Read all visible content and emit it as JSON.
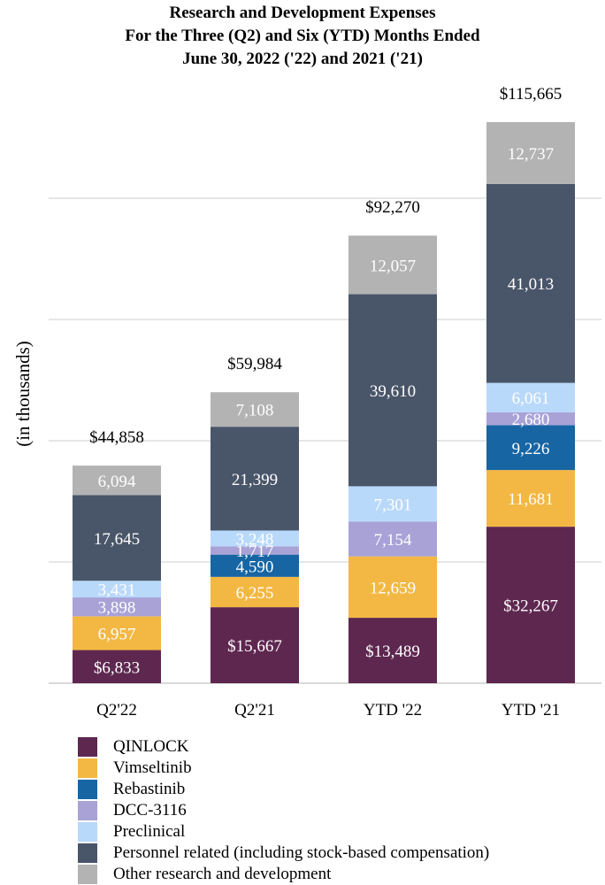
{
  "chart_data": {
    "type": "bar",
    "stacked": true,
    "title": "Research and Development Expenses",
    "subtitle_lines": [
      "For the Three (Q2) and Six (YTD) Months Ended",
      "June 30, 2022 ('22) and 2021 ('21)"
    ],
    "ylabel": "(in thousands)",
    "xlabel": "",
    "ylim": [
      0,
      115665
    ],
    "grid": true,
    "legend_position": "bottom",
    "categories": [
      "Q2'22",
      "Q2'21",
      "YTD '22",
      "YTD '21"
    ],
    "totals": [
      44858,
      59984,
      92270,
      115665
    ],
    "total_labels": [
      "$44,858",
      "$59,984",
      "$92,270",
      "$115,665"
    ],
    "series": [
      {
        "name": "QINLOCK",
        "color": "#5e2750",
        "values": [
          6833,
          15667,
          13489,
          32267
        ],
        "labels": [
          "$6,833",
          "$15,667",
          "$13,489",
          "$32,267"
        ]
      },
      {
        "name": "Vimseltinib",
        "color": "#f3b843",
        "values": [
          6957,
          6255,
          12659,
          11681
        ],
        "labels": [
          "6,957",
          "6,255",
          "12,659",
          "11,681"
        ]
      },
      {
        "name": "Rebastinib",
        "color": "#1765a3",
        "values": [
          0,
          4590,
          0,
          9226
        ],
        "labels": [
          "",
          "4,590",
          "",
          "9,226"
        ]
      },
      {
        "name": "DCC-3116",
        "color": "#a8a2d7",
        "values": [
          3898,
          1717,
          7154,
          2680
        ],
        "labels": [
          "3,898",
          "1,717",
          "7,154",
          "2,680"
        ]
      },
      {
        "name": "Preclinical",
        "color": "#b9d9fb",
        "values": [
          3431,
          3248,
          7301,
          6061
        ],
        "labels": [
          "3,431",
          "3,248",
          "7,301",
          "6,061"
        ]
      },
      {
        "name": "Personnel related (including stock-based compensation)",
        "color": "#495569",
        "values": [
          17645,
          21399,
          39610,
          41013
        ],
        "labels": [
          "17,645",
          "21,399",
          "39,610",
          "41,013"
        ]
      },
      {
        "name": "Other research and development",
        "color": "#b3b3b3",
        "values": [
          6094,
          7108,
          12057,
          12737
        ],
        "labels": [
          "6,094",
          "7,108",
          "12,057",
          "12,737"
        ]
      }
    ]
  }
}
